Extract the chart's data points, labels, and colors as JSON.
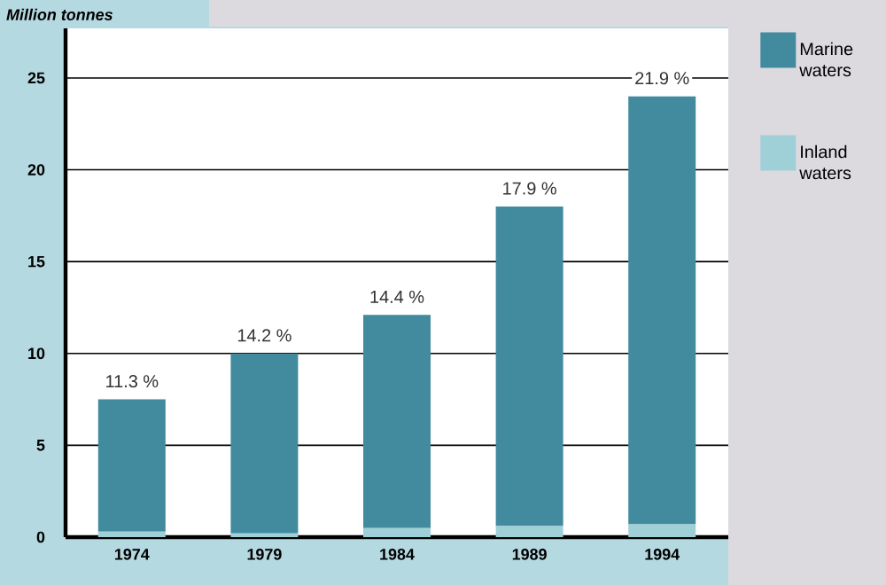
{
  "chart_data": {
    "type": "bar",
    "stacked": true,
    "ylabel": "Million tonnes",
    "categories": [
      "1974",
      "1979",
      "1984",
      "1989",
      "1994"
    ],
    "series": [
      {
        "name": "Inland waters",
        "color": "#9fd0d8",
        "values": [
          0.3,
          0.2,
          0.5,
          0.6,
          0.7
        ]
      },
      {
        "name": "Marine waters",
        "color": "#428a9e",
        "values": [
          7.2,
          9.8,
          11.6,
          17.4,
          23.3
        ]
      }
    ],
    "annotations": [
      {
        "text": "11.3 %",
        "x": "1974",
        "y": 7.5
      },
      {
        "text": "14.2 %",
        "x": "1979",
        "y": 10
      },
      {
        "text": "14.4 %",
        "x": "1984",
        "y": 12.1
      },
      {
        "text": "17.9 %",
        "x": "1989",
        "y": 18
      },
      {
        "text": "21.9 %",
        "x": "1994",
        "y": 24
      }
    ],
    "ylim": [
      0,
      27.7
    ],
    "yticks": [
      0,
      5,
      10,
      15,
      20,
      25
    ],
    "grid": "y",
    "legend": "right"
  }
}
